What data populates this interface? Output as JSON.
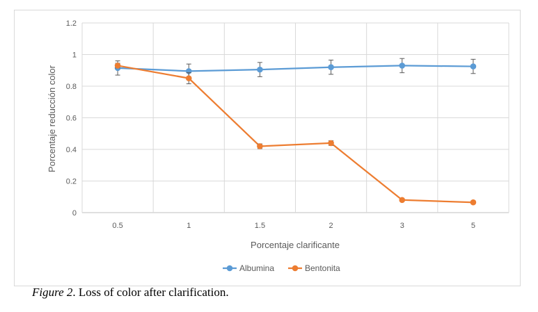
{
  "caption": {
    "label": "Figure 2",
    "text": ". Loss of color after clarification."
  },
  "chart_data": {
    "type": "line",
    "title": "",
    "xlabel": "Porcentaje clarificante",
    "ylabel": "Porcentaje reducción color",
    "categories": [
      "0.5",
      "1",
      "1.5",
      "2",
      "3",
      "5"
    ],
    "ylim": [
      0,
      1.2
    ],
    "yticks": [
      "0",
      "0.2",
      "0.4",
      "0.6",
      "0.8",
      "1",
      "1.2"
    ],
    "grid": true,
    "legend_position": "bottom",
    "series": [
      {
        "name": "Albumina",
        "color": "#5b9bd5",
        "values": [
          0.915,
          0.895,
          0.905,
          0.92,
          0.93,
          0.925
        ],
        "errors": [
          0.045,
          0.045,
          0.045,
          0.045,
          0.045,
          0.045
        ]
      },
      {
        "name": "Bentonita",
        "color": "#ed7d31",
        "values": [
          0.93,
          0.85,
          0.42,
          0.44,
          0.08,
          0.065
        ],
        "errors": [
          0.015,
          0.035,
          0.015,
          0.015,
          0.008,
          0.008
        ]
      }
    ]
  }
}
